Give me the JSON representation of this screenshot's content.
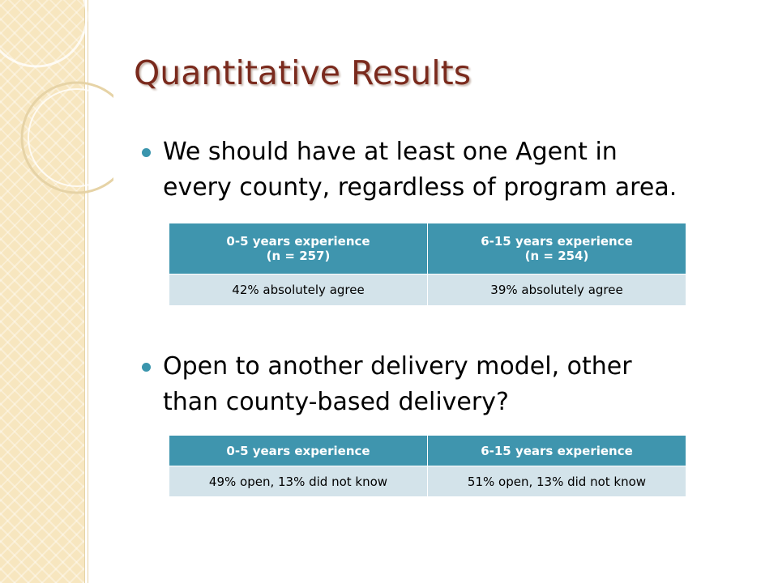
{
  "title": "Quantitative Results",
  "sections": [
    {
      "bullet": [
        "We should have at least one Agent in",
        "every county, regardless of program area."
      ],
      "table": {
        "header": [
          [
            "0-5 years experience",
            "(n = 257)"
          ],
          [
            "6-15 years experience",
            "(n = 254)"
          ]
        ],
        "rows": [
          [
            "42% absolutely agree",
            "39% absolutely agree"
          ]
        ]
      }
    },
    {
      "bullet": [
        "Open to another delivery model, other",
        "than county-based delivery?"
      ],
      "table": {
        "header": [
          [
            "0-5 years experience"
          ],
          [
            "6-15 years experience"
          ]
        ],
        "rows": [
          [
            "49% open, 13% did not know",
            "51% open, 13% did not know"
          ]
        ]
      }
    }
  ]
}
